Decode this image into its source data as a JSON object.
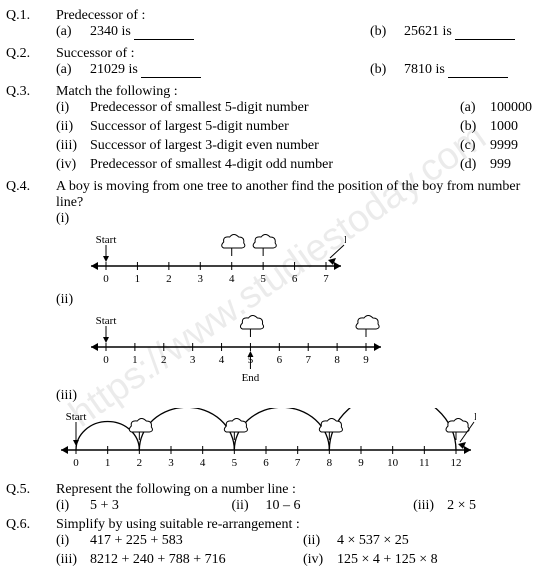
{
  "watermark": "https://www.studiestoday.com",
  "q1": {
    "num": "Q.1.",
    "text": "Predecessor of :",
    "a_label": "(a)",
    "a_text": "2340 is",
    "b_label": "(b)",
    "b_text": "25621 is"
  },
  "q2": {
    "num": "Q.2.",
    "text": "Successor of :",
    "a_label": "(a)",
    "a_text": "21029 is",
    "b_label": "(b)",
    "b_text": "7810 is"
  },
  "q3": {
    "num": "Q.3.",
    "text": "Match the following :",
    "items": [
      {
        "l": "(i)",
        "t": "Predecessor of smallest 5-digit number",
        "k": "(a)",
        "v": "100000"
      },
      {
        "l": "(ii)",
        "t": "Successor of largest 5-digit number",
        "k": "(b)",
        "v": "1000"
      },
      {
        "l": "(iii)",
        "t": "Successor of largest 3-digit even number",
        "k": "(c)",
        "v": "9999"
      },
      {
        "l": "(iv)",
        "t": "Predecessor of smallest 4-digit odd number",
        "k": "(d)",
        "v": "999"
      }
    ]
  },
  "q4": {
    "num": "Q.4.",
    "text": "A boy is moving from one tree to another find the position of the boy from number line?",
    "parts": {
      "i": "(i)",
      "ii": "(ii)",
      "iii": "(iii)"
    },
    "labels": {
      "start": "Start",
      "end": "End"
    },
    "nl1": {
      "ticks": [
        0,
        7
      ],
      "start": 0,
      "end": 7,
      "tree1": 4,
      "tree2": 5
    },
    "nl2": {
      "ticks": [
        0,
        9
      ],
      "start": 0,
      "end": 5,
      "tree1": 5,
      "tree2": 9
    },
    "nl3": {
      "ticks": [
        0,
        12
      ],
      "start": 0,
      "end": 12,
      "arcs": [
        [
          0,
          2
        ],
        [
          2,
          5
        ],
        [
          5,
          8
        ],
        [
          8,
          12
        ]
      ],
      "trees": [
        2,
        5,
        8,
        12
      ]
    },
    "style": {
      "font": "12px",
      "tick_h": 6
    }
  },
  "q5": {
    "num": "Q.5.",
    "text": "Represent the following on a number line :",
    "items": [
      {
        "l": "(i)",
        "t": "5 + 3"
      },
      {
        "l": "(ii)",
        "t": "10 – 6"
      },
      {
        "l": "(iii)",
        "t": "2 × 5"
      }
    ]
  },
  "q6": {
    "num": "Q.6.",
    "text": "Simplify by using suitable re-arrangement :",
    "items": [
      {
        "l": "(i)",
        "t": "417 + 225 + 583"
      },
      {
        "l": "(ii)",
        "t": "4 × 537 × 25"
      },
      {
        "l": "(iii)",
        "t": "8212 + 240 + 788 + 716"
      },
      {
        "l": "(iv)",
        "t": "125 × 4 + 125 × 8"
      }
    ]
  }
}
